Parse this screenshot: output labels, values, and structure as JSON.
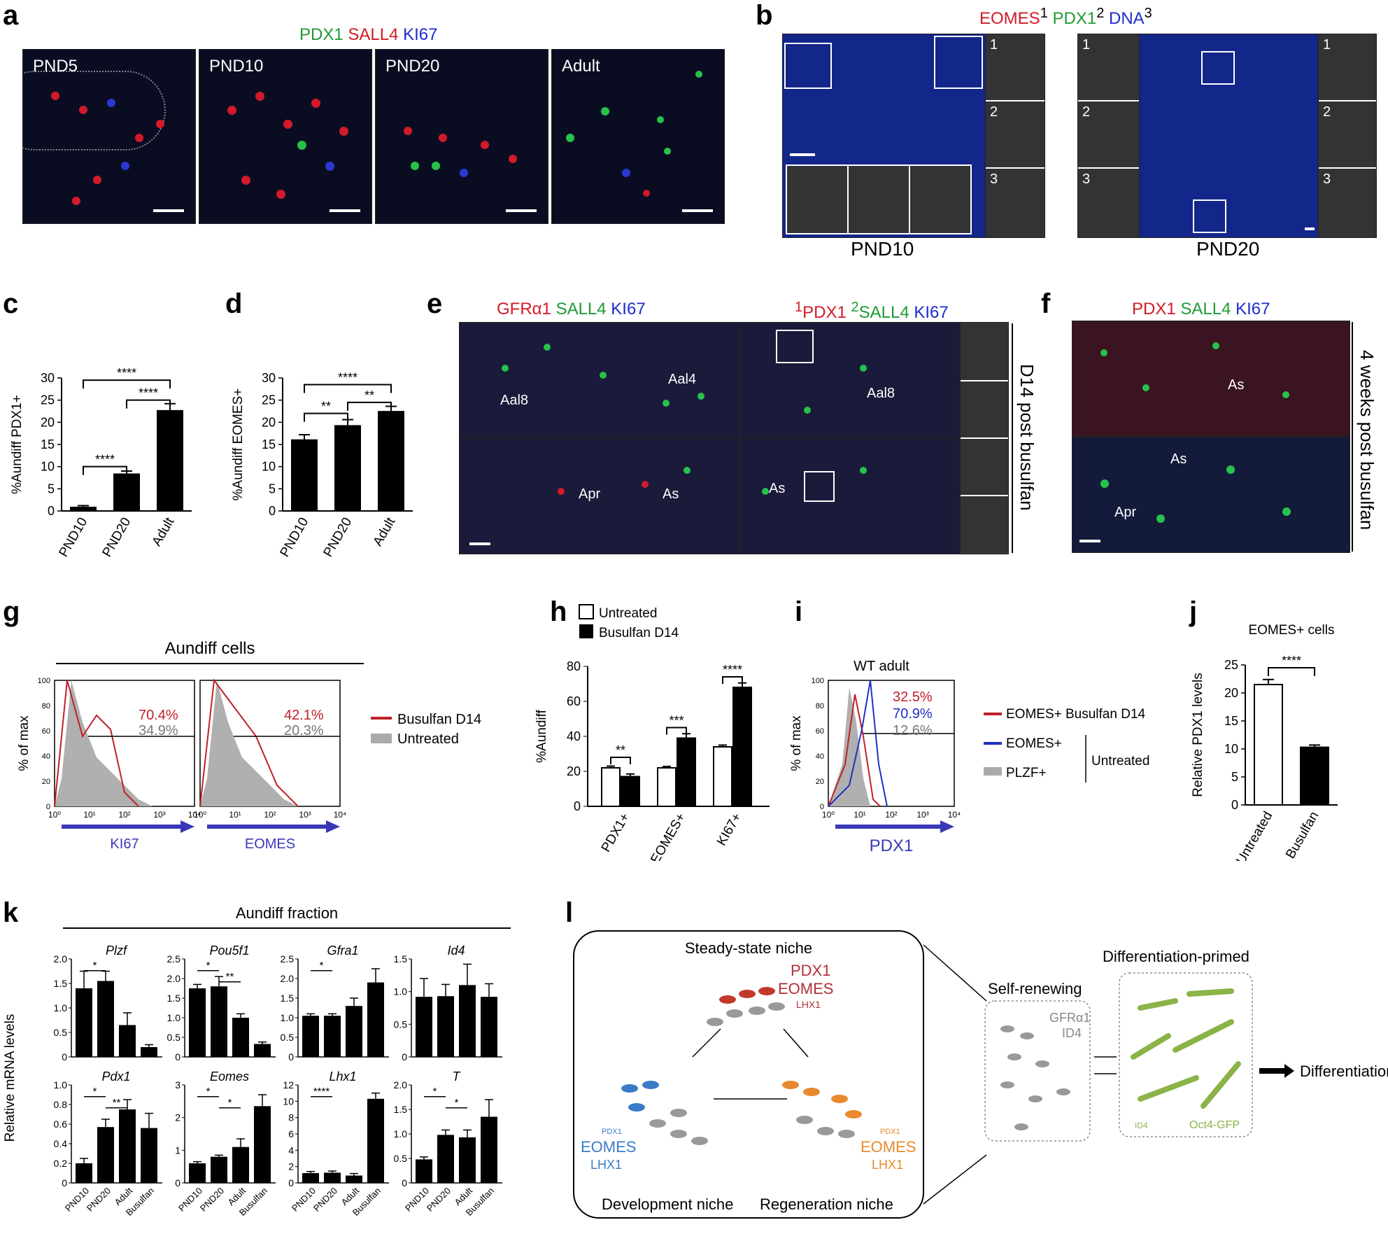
{
  "panel_labels": {
    "a": "a",
    "b": "b",
    "c": "c",
    "d": "d",
    "e": "e",
    "f": "f",
    "g": "g",
    "h": "h",
    "i": "i",
    "j": "j",
    "k": "k",
    "l": "l"
  },
  "a": {
    "title": [
      "PDX1",
      "SALL4",
      "KI67"
    ],
    "images": [
      "PND5",
      "PND10",
      "PND20",
      "Adult"
    ]
  },
  "b": {
    "title_parts": [
      "EOMES",
      "1",
      "PDX1",
      "2",
      "DNA",
      "3"
    ],
    "left_caption": "PND10",
    "right_caption": "PND20",
    "inset_nums": [
      "1",
      "2",
      "3"
    ]
  },
  "e": {
    "left_title": [
      "GFRα1",
      "SALL4",
      "KI67"
    ],
    "right_title": [
      "1",
      "PDX1",
      "2",
      "SALL4",
      "KI67"
    ],
    "side": "D14 post busulfan",
    "cell_labels": [
      "Aal8",
      "Aal4",
      "Apr",
      "As"
    ]
  },
  "f": {
    "title": [
      "PDX1",
      "SALL4",
      "KI67"
    ],
    "side": "4 weeks post busulfan"
  },
  "chart_data": [
    {
      "panel": "c",
      "type": "bar",
      "categories": [
        "PND10",
        "PND20",
        "Adult"
      ],
      "values": [
        0.8,
        8.3,
        22.6
      ],
      "errors": [
        0.4,
        0.7,
        1.6
      ],
      "ylabel": "%Aundiff PDX1+",
      "ylim": [
        0,
        30
      ],
      "yticks": [
        0,
        5,
        10,
        15,
        20,
        25,
        30
      ],
      "significance": [
        "****",
        "****",
        "****"
      ]
    },
    {
      "panel": "d",
      "type": "bar",
      "categories": [
        "PND10",
        "PND20",
        "Adult"
      ],
      "values": [
        16,
        19.2,
        22.4
      ],
      "errors": [
        1.2,
        1.4,
        1.2
      ],
      "ylabel": "%Aundiff EOMES+",
      "ylim": [
        0,
        30
      ],
      "yticks": [
        0,
        5,
        10,
        15,
        20,
        25,
        30
      ],
      "significance": [
        "**",
        "**",
        "****"
      ]
    },
    {
      "panel": "g",
      "type": "histogram",
      "title": "Aundiff cells",
      "panels": [
        "KI67",
        "EOMES"
      ],
      "xlabel": "% of max",
      "percent_busulfan": [
        "70.4%",
        "42.1%"
      ],
      "percent_untreated": [
        "34.9%",
        "20.3%"
      ],
      "legend": [
        "Busulfan D14",
        "Untreated"
      ],
      "yticks": [
        0,
        20,
        40,
        60,
        80,
        100
      ],
      "xticks": [
        "10⁰",
        "10¹",
        "10²",
        "10³",
        "10⁴"
      ]
    },
    {
      "panel": "h",
      "type": "bar",
      "categories": [
        "PDX1+",
        "EOMES+",
        "KI67+"
      ],
      "series": [
        {
          "name": "Untreated",
          "values": [
            22,
            22,
            34
          ]
        },
        {
          "name": "Busulfan D14",
          "values": [
            17,
            39,
            68
          ]
        }
      ],
      "errors": [
        [
          1,
          0.8,
          1
        ],
        [
          1.5,
          2.5,
          2.5
        ]
      ],
      "ylabel": "%Aundiff",
      "ylim": [
        0,
        80
      ],
      "yticks": [
        0,
        20,
        40,
        60,
        80
      ],
      "significance": [
        "**",
        "***",
        "****"
      ]
    },
    {
      "panel": "i",
      "type": "histogram",
      "title": "WT adult",
      "xlabel": "PDX1",
      "ylabel": "% of max",
      "values_text": [
        "32.5%",
        "70.9%",
        "12.6%"
      ],
      "legend": [
        "EOMES+ Busulfan D14",
        "EOMES+",
        "PLZF+"
      ],
      "legend_group": "Untreated",
      "yticks": [
        0,
        20,
        40,
        60,
        80,
        100
      ],
      "xticks": [
        "10⁰",
        "10¹",
        "10²",
        "10³",
        "10⁴"
      ]
    },
    {
      "panel": "j",
      "type": "bar",
      "title": "EOMES+ cells",
      "categories": [
        "Untreated",
        "Busulfan"
      ],
      "values": [
        21.5,
        10.3
      ],
      "errors": [
        0.9,
        0.4
      ],
      "ylabel": "Relative PDX1 levels",
      "ylim": [
        0,
        25
      ],
      "yticks": [
        0,
        5,
        10,
        15,
        20,
        25
      ],
      "significance": [
        "****"
      ]
    },
    {
      "panel": "k",
      "type": "bar",
      "title": "Aundiff fraction",
      "ylabel": "Relative mRNA levels",
      "categories": [
        "PND10",
        "PND20",
        "Adult",
        "Busulfan"
      ],
      "genes": [
        {
          "name": "Plzf",
          "values": [
            1.4,
            1.55,
            0.65,
            0.2
          ],
          "errors": [
            0.35,
            0.2,
            0.25,
            0.05
          ],
          "ylim": [
            0,
            2.0
          ],
          "yticks": [
            "0",
            "0.5",
            "1.0",
            "1.5",
            "2.0"
          ],
          "sig": [
            "*"
          ]
        },
        {
          "name": "Pou5f1",
          "values": [
            1.75,
            1.8,
            1.0,
            0.33
          ],
          "errors": [
            0.1,
            0.25,
            0.1,
            0.05
          ],
          "ylim": [
            0,
            2.5
          ],
          "yticks": [
            "0",
            "0.5",
            "1.0",
            "1.5",
            "2.0",
            "2.5"
          ],
          "sig": [
            "*",
            "**"
          ]
        },
        {
          "name": "Gfra1",
          "values": [
            1.05,
            1.05,
            1.3,
            1.9
          ],
          "errors": [
            0.05,
            0.05,
            0.2,
            0.35
          ],
          "ylim": [
            0,
            2.5
          ],
          "yticks": [
            "0",
            "0.5",
            "1.0",
            "1.5",
            "2.0",
            "2.5"
          ],
          "sig": [
            "*"
          ]
        },
        {
          "name": "Id4",
          "values": [
            0.92,
            0.93,
            1.1,
            0.92
          ],
          "errors": [
            0.28,
            0.18,
            0.32,
            0.2
          ],
          "ylim": [
            0,
            1.5
          ],
          "yticks": [
            "0",
            "0.5",
            "1.0",
            "1.5"
          ],
          "sig": []
        },
        {
          "name": "Pdx1",
          "values": [
            0.2,
            0.57,
            0.75,
            0.56
          ],
          "errors": [
            0.05,
            0.08,
            0.1,
            0.15
          ],
          "ylim": [
            0,
            1.0
          ],
          "yticks": [
            "0",
            "0.2",
            "0.4",
            "0.6",
            "0.8",
            "1.0"
          ],
          "sig": [
            "*",
            "**"
          ]
        },
        {
          "name": "Eomes",
          "values": [
            0.6,
            0.8,
            1.1,
            2.35
          ],
          "errors": [
            0.05,
            0.05,
            0.25,
            0.35
          ],
          "ylim": [
            0,
            3
          ],
          "yticks": [
            "0",
            "1",
            "2",
            "3"
          ],
          "sig": [
            "*",
            "*"
          ]
        },
        {
          "name": "Lhx1",
          "values": [
            1.2,
            1.25,
            0.9,
            10.3
          ],
          "errors": [
            0.2,
            0.2,
            0.25,
            0.7
          ],
          "ylim": [
            0,
            12
          ],
          "yticks": [
            "0",
            "2",
            "4",
            "6",
            "8",
            "10",
            "12"
          ],
          "sig": [
            "****"
          ]
        },
        {
          "name": "T",
          "values": [
            0.48,
            0.98,
            0.93,
            1.35
          ],
          "errors": [
            0.05,
            0.1,
            0.15,
            0.35
          ],
          "ylim": [
            0,
            2.0
          ],
          "yticks": [
            "0",
            "0.5",
            "1.0",
            "1.5",
            "2.0"
          ],
          "sig": [
            "*",
            "*"
          ]
        }
      ]
    }
  ],
  "l": {
    "steady": "Steady-state niche",
    "steady_markers": [
      "PDX1",
      "EOMES",
      "LHX1"
    ],
    "dev": "Development niche",
    "dev_markers": [
      "PDX1",
      "EOMES",
      "LHX1"
    ],
    "regen": "Regeneration niche",
    "regen_markers": [
      "PDX1",
      "EOMES",
      "LHX1"
    ],
    "self_renewing": "Self-renewing",
    "sr_markers": [
      "GFRα1",
      "ID4"
    ],
    "diff_primed": "Differentiation-primed",
    "dp_markers": [
      "ID4",
      "Oct4-GFP"
    ],
    "differentiation": "Differentiation"
  }
}
